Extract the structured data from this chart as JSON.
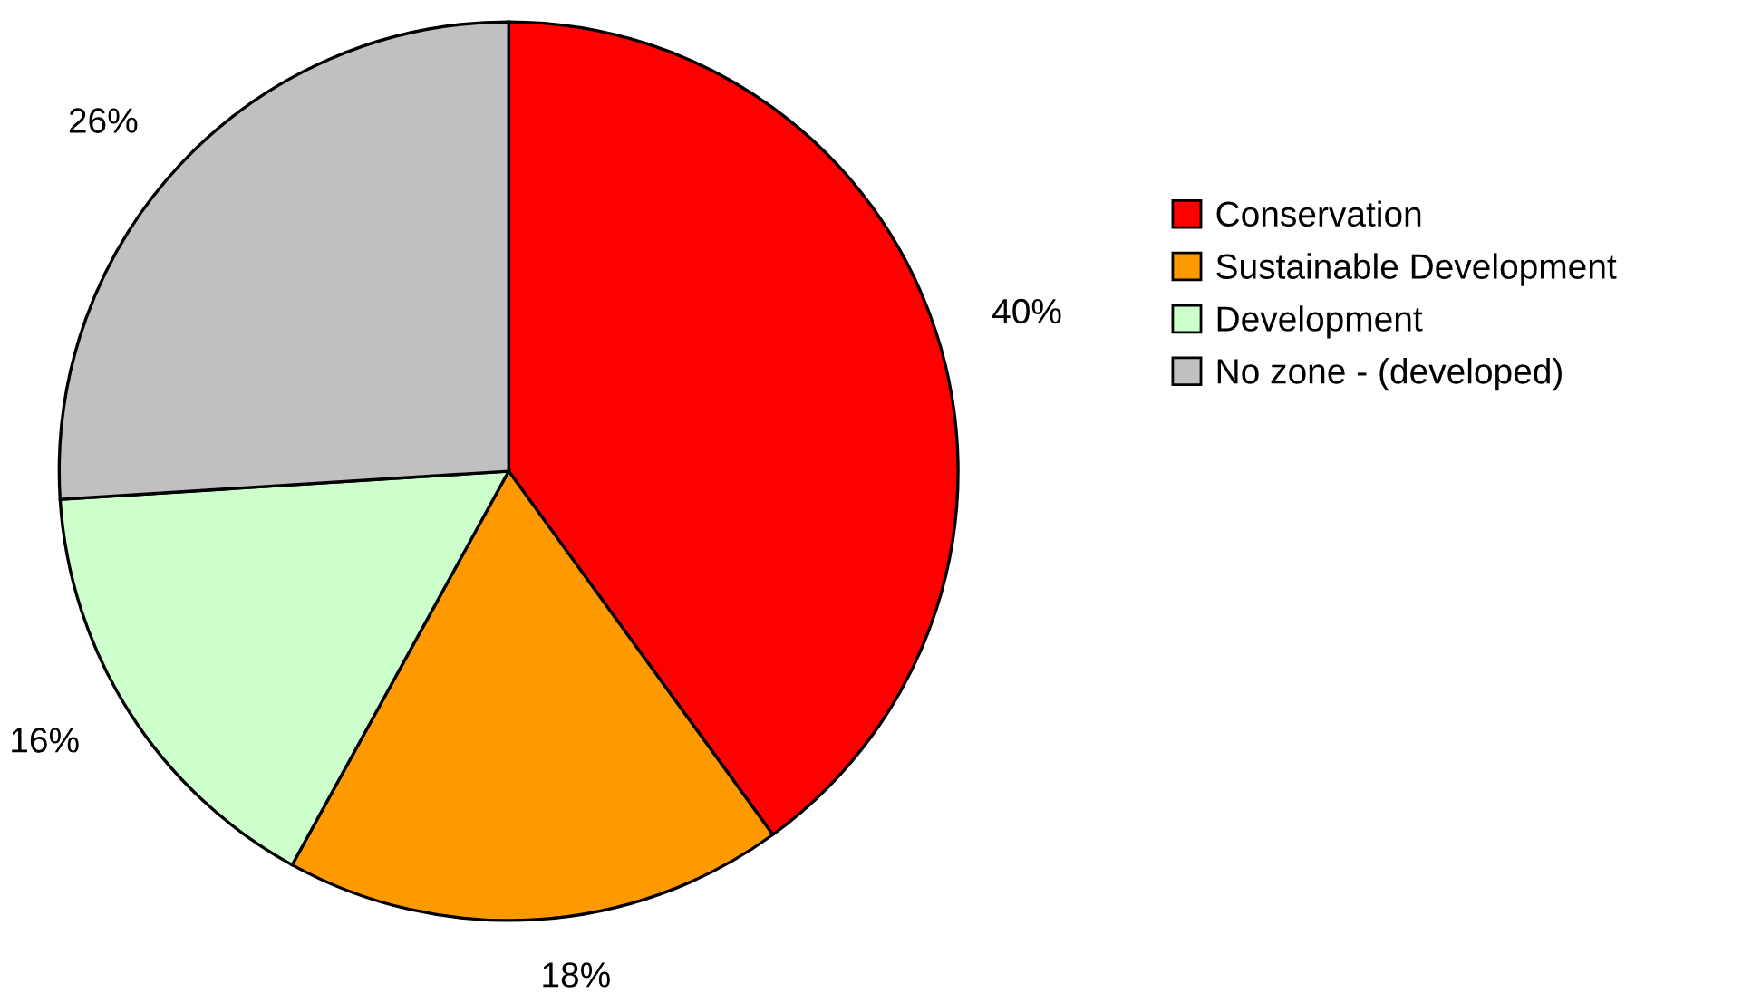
{
  "chart_data": {
    "type": "pie",
    "categories": [
      "Conservation",
      "Sustainable Development",
      "Development",
      "No zone - (developed)"
    ],
    "values": [
      40,
      18,
      16,
      26
    ],
    "colors": [
      "#ff0000",
      "#ff9900",
      "#ccffcc",
      "#c0c0c0"
    ],
    "value_labels": [
      "40%",
      "18%",
      "16%",
      "26%"
    ],
    "legend": "right"
  }
}
